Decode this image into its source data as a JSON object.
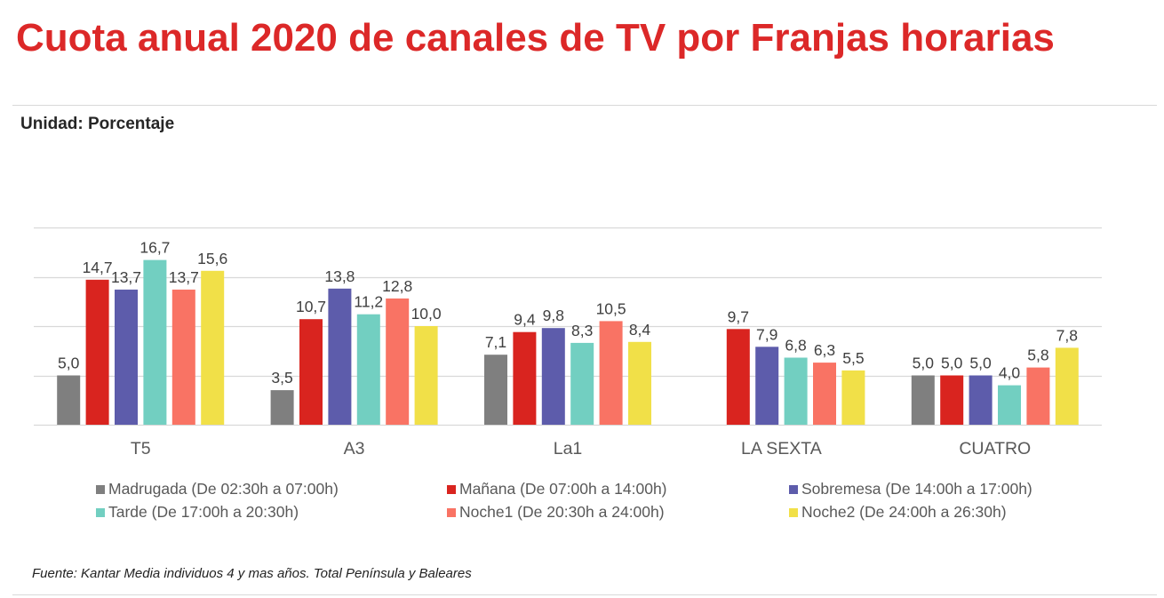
{
  "title": "Cuota anual 2020 de canales de TV por Franjas horarias",
  "subtitle": "Unidad: Porcentaje",
  "source": "Fuente: Kantar Media individuos 4 y mas años. Total Península y Baleares",
  "chart_data": {
    "type": "bar",
    "title": "Cuota anual 2020 de canales de TV por Franjas horarias",
    "xlabel": "",
    "ylabel": "Porcentaje",
    "ylim": [
      0,
      20
    ],
    "yticks": [
      0,
      5,
      10,
      15,
      20
    ],
    "grid": true,
    "y_axis_labels_visible": false,
    "legend_position": "bottom",
    "categories": [
      "T5",
      "A3",
      "La1",
      "LA SEXTA",
      "CUATRO"
    ],
    "series": [
      {
        "name": "Madrugada (De 02:30h a 07:00h)",
        "color": "#7f7f7f",
        "values": [
          5.0,
          3.5,
          7.1,
          null,
          5.0
        ],
        "labels": [
          "5,0",
          "3,5",
          "7,1",
          "",
          "5,0"
        ]
      },
      {
        "name": "Mañana (De 07:00h a 14:00h)",
        "color": "#d9241f",
        "values": [
          14.7,
          10.7,
          9.4,
          9.7,
          5.0
        ],
        "labels": [
          "14,7",
          "10,7",
          "9,4",
          "9,7",
          "5,0"
        ]
      },
      {
        "name": "Sobremesa (De 14:00h a 17:00h)",
        "color": "#5d5cab",
        "values": [
          13.7,
          13.8,
          9.8,
          7.9,
          5.0
        ],
        "labels": [
          "13,7",
          "13,8",
          "9,8",
          "7,9",
          "5,0"
        ]
      },
      {
        "name": "Tarde (De 17:00h a 20:30h)",
        "color": "#72cfc1",
        "values": [
          16.7,
          11.2,
          8.3,
          6.8,
          4.0
        ],
        "labels": [
          "16,7",
          "11,2",
          "8,3",
          "6,8",
          "4,0"
        ]
      },
      {
        "name": "Noche1 (De 20:30h a 24:00h)",
        "color": "#f97364",
        "values": [
          13.7,
          12.8,
          10.5,
          6.3,
          5.8
        ],
        "labels": [
          "13,7",
          "12,8",
          "10,5",
          "6,3",
          "5,8"
        ]
      },
      {
        "name": "Noche2 (De 24:00h a 26:30h)",
        "color": "#f1e048",
        "values": [
          15.6,
          10.0,
          8.4,
          5.5,
          7.8
        ],
        "labels": [
          "15,6",
          "10,0",
          "8,4",
          "5,5",
          "7,8"
        ]
      }
    ]
  },
  "colors": {
    "title": "#dc2828",
    "grid": "#d9d9d9",
    "label_text": "#404040",
    "category_text": "#595959"
  }
}
